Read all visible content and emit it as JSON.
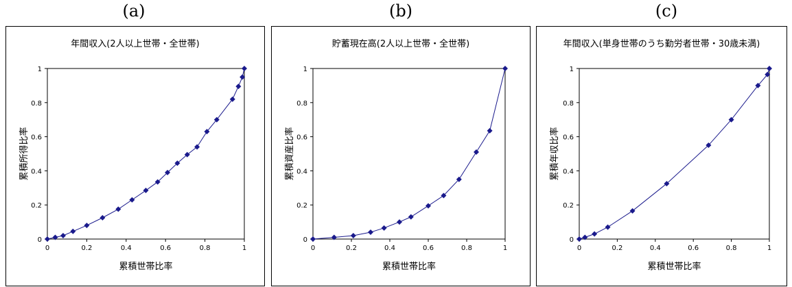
{
  "chart_data": [
    {
      "type": "line",
      "panel_label": "(a)",
      "title": "年間収入(2人以上世帯・全世帯)",
      "xlabel": "累積世帯比率",
      "ylabel": "累積所得比率",
      "xlim": [
        0,
        1
      ],
      "ylim": [
        0,
        1
      ],
      "xticks": [
        "0",
        "0.2",
        "0.4",
        "0.6",
        "0.8",
        "1"
      ],
      "yticks": [
        "0",
        "0.2",
        "0.4",
        "0.6",
        "0.8",
        "1"
      ],
      "color": "#1a1a8c",
      "x": [
        0,
        0.04,
        0.08,
        0.13,
        0.2,
        0.28,
        0.36,
        0.43,
        0.5,
        0.56,
        0.61,
        0.66,
        0.71,
        0.76,
        0.81,
        0.86,
        0.94,
        0.97,
        0.99,
        1.0
      ],
      "y": [
        0,
        0.01,
        0.02,
        0.045,
        0.08,
        0.125,
        0.175,
        0.23,
        0.285,
        0.335,
        0.39,
        0.445,
        0.495,
        0.54,
        0.63,
        0.7,
        0.82,
        0.895,
        0.95,
        1.0
      ]
    },
    {
      "type": "line",
      "panel_label": "(b)",
      "title": "貯蓄現在高(2人以上世帯・全世帯)",
      "xlabel": "累積世帯比率",
      "ylabel": "累積資産比率",
      "xlim": [
        0,
        1
      ],
      "ylim": [
        0,
        1
      ],
      "xticks": [
        "0",
        "0.2",
        "0.4",
        "0.6",
        "0.8",
        "1"
      ],
      "yticks": [
        "0",
        "0.2",
        "0.4",
        "0.6",
        "0.8",
        "1"
      ],
      "color": "#1a1a8c",
      "x": [
        0,
        0.11,
        0.21,
        0.3,
        0.37,
        0.45,
        0.51,
        0.6,
        0.68,
        0.76,
        0.85,
        0.92,
        1.0
      ],
      "y": [
        0,
        0.01,
        0.02,
        0.04,
        0.065,
        0.1,
        0.13,
        0.195,
        0.255,
        0.35,
        0.51,
        0.635,
        1.0
      ]
    },
    {
      "type": "line",
      "panel_label": "(c)",
      "title": "年間収入(単身世帯のうち勤労者世帯・30歳未満)",
      "xlabel": "累積世帯比率",
      "ylabel": "累積年収比率",
      "xlim": [
        0,
        1
      ],
      "ylim": [
        0,
        1
      ],
      "xticks": [
        "0",
        "0.2",
        "0.4",
        "0.6",
        "0.8",
        "1"
      ],
      "yticks": [
        "0",
        "0.2",
        "0.4",
        "0.6",
        "0.8",
        "1"
      ],
      "color": "#1a1a8c",
      "x": [
        0,
        0.03,
        0.08,
        0.15,
        0.28,
        0.46,
        0.68,
        0.8,
        0.94,
        0.99,
        1.0
      ],
      "y": [
        0,
        0.01,
        0.03,
        0.07,
        0.165,
        0.325,
        0.55,
        0.7,
        0.9,
        0.965,
        1.0
      ]
    }
  ]
}
